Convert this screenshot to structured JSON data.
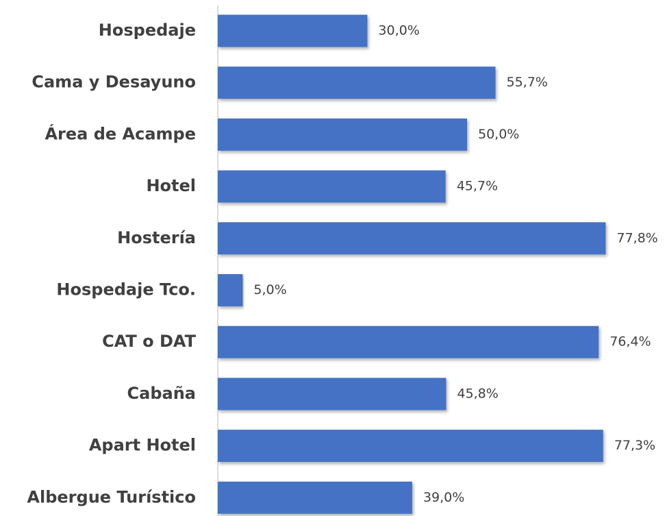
{
  "chart_data": {
    "type": "bar",
    "orientation": "horizontal",
    "categories": [
      "Hospedaje",
      "Cama y Desayuno",
      "Área de Acampe",
      "Hotel",
      "Hostería",
      "Hospedaje Tco.",
      "CAT o DAT",
      "Cabaña",
      "Apart Hotel",
      "Albergue Turístico"
    ],
    "values": [
      30.0,
      55.7,
      50.0,
      45.7,
      77.8,
      5.0,
      76.4,
      45.8,
      77.3,
      39.0
    ],
    "value_labels": [
      "30,0%",
      "55,7%",
      "50,0%",
      "45,7%",
      "77,8%",
      "5,0%",
      "76,4%",
      "45,8%",
      "77,3%",
      "39,0%"
    ],
    "color": "#4472c4"
  }
}
